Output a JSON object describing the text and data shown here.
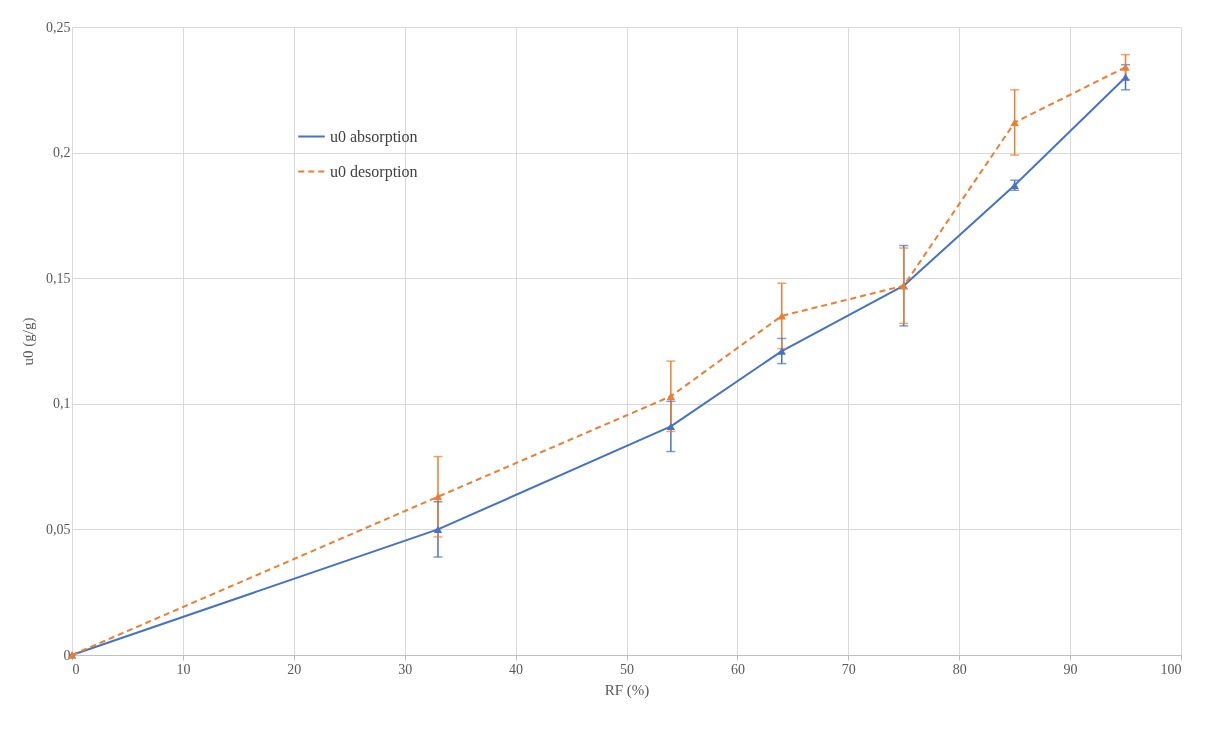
{
  "chart_data": {
    "type": "line",
    "xlabel": "RF (%)",
    "ylabel": "u0 (g/g)",
    "x": [
      0,
      33,
      54,
      64,
      75,
      85,
      95
    ],
    "series": [
      {
        "name": "u0 absorption",
        "color": "#4472c4",
        "line_style": "solid",
        "values": [
          0,
          0.05,
          0.091,
          0.121,
          0.147,
          0.187,
          0.23
        ],
        "errors": [
          null,
          0.011,
          0.01,
          0.005,
          0.016,
          0.002,
          0.005
        ]
      },
      {
        "name": "u0 desorption",
        "color": "#ed7d31",
        "line_style": "dashed",
        "values": [
          0,
          0.063,
          0.103,
          0.135,
          0.147,
          0.212,
          0.234
        ],
        "errors": [
          null,
          0.016,
          0.014,
          0.013,
          0.015,
          0.013,
          0.005
        ]
      }
    ],
    "marker": "triangle",
    "xlim": [
      0,
      100
    ],
    "xticks": [
      0,
      10,
      20,
      30,
      40,
      50,
      60,
      70,
      80,
      90,
      100
    ],
    "ylim": [
      0,
      0.25
    ],
    "yticks": [
      {
        "value": 0,
        "label": "0"
      },
      {
        "value": 0.05,
        "label": "0,05"
      },
      {
        "value": 0.1,
        "label": "0,1"
      },
      {
        "value": 0.15,
        "label": "0,15"
      },
      {
        "value": 0.2,
        "label": "0,2"
      },
      {
        "value": 0.25,
        "label": "0,25"
      }
    ],
    "grid": true,
    "legend": "top left"
  }
}
